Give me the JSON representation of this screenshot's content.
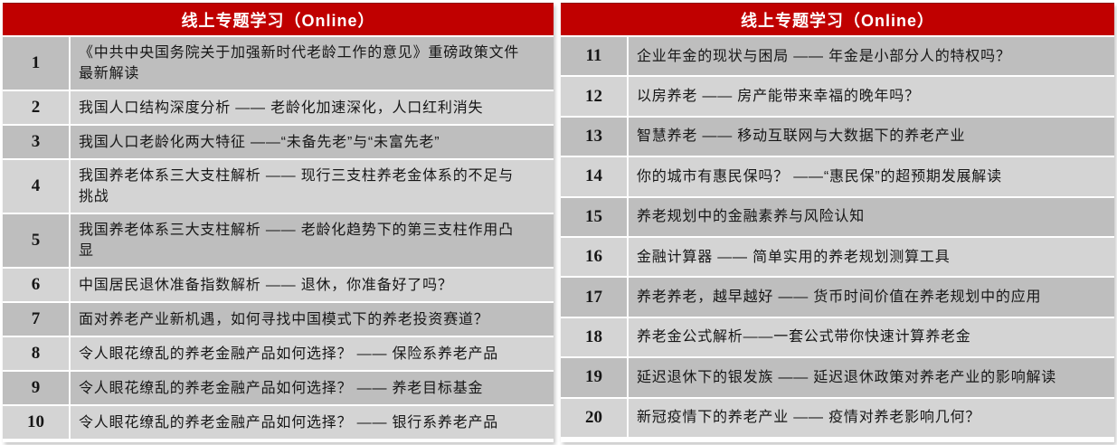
{
  "colors": {
    "accent": "#C00000",
    "accent-dark": "#8E0A0A",
    "row-dark": "#BEBEBE",
    "row-light": "#D4D4D4",
    "header-text": "#FFFFFF",
    "body-text": "#161616"
  },
  "tables": [
    {
      "title": "线上专题学习（Online）",
      "rows": [
        {
          "num": "1",
          "text": "《中共中央国务院关于加强新时代老龄工作的意见》重磅政策文件最新解读"
        },
        {
          "num": "2",
          "text": "我国人口结构深度分析 —— 老龄化加速深化，人口红利消失"
        },
        {
          "num": "3",
          "text": "我国人口老龄化两大特征 ——“未备先老”与“未富先老”"
        },
        {
          "num": "4",
          "text": "我国养老体系三大支柱解析 —— 现行三支柱养老金体系的不足与挑战"
        },
        {
          "num": "5",
          "text": "我国养老体系三大支柱解析 —— 老龄化趋势下的第三支柱作用凸显"
        },
        {
          "num": "6",
          "text": "中国居民退休准备指数解析 —— 退休，你准备好了吗？"
        },
        {
          "num": "7",
          "text": "面对养老产业新机遇，如何寻找中国模式下的养老投资赛道？"
        },
        {
          "num": "8",
          "text": "令人眼花缭乱的养老金融产品如何选择？ —— 保险系养老产品"
        },
        {
          "num": "9",
          "text": "令人眼花缭乱的养老金融产品如何选择？ —— 养老目标基金"
        },
        {
          "num": "10",
          "text": "令人眼花缭乱的养老金融产品如何选择？ —— 银行系养老产品"
        }
      ]
    },
    {
      "title": "线上专题学习（Online）",
      "rows": [
        {
          "num": "11",
          "text": "企业年金的现状与困局 —— 年金是小部分人的特权吗？"
        },
        {
          "num": "12",
          "text": "以房养老 —— 房产能带来幸福的晚年吗？"
        },
        {
          "num": "13",
          "text": "智慧养老 —— 移动互联网与大数据下的养老产业"
        },
        {
          "num": "14",
          "text": "你的城市有惠民保吗？ ——“惠民保”的超预期发展解读"
        },
        {
          "num": "15",
          "text": "养老规划中的金融素养与风险认知"
        },
        {
          "num": "16",
          "text": "金融计算器 —— 简单实用的养老规划测算工具"
        },
        {
          "num": "17",
          "text": "养老养老，越早越好 —— 货币时间价值在养老规划中的应用"
        },
        {
          "num": "18",
          "text": "养老金公式解析——一套公式带你快速计算养老金"
        },
        {
          "num": "19",
          "text": "延迟退休下的银发族 —— 延迟退休政策对养老产业的影响解读"
        },
        {
          "num": "20",
          "text": "新冠疫情下的养老产业 —— 疫情对养老影响几何？"
        }
      ]
    }
  ]
}
